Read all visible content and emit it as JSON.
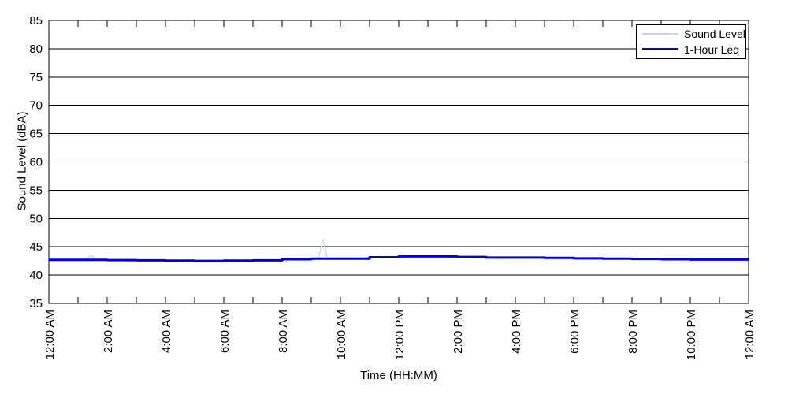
{
  "axes": {
    "x_title": "Time (HH:MM)",
    "y_title": "Sound Level (dBA)"
  },
  "chart_data": {
    "type": "line",
    "title": "",
    "xlabel": "Time (HH:MM)",
    "ylabel": "Sound Level (dBA)",
    "xlim": [
      0,
      24
    ],
    "ylim": [
      35,
      85
    ],
    "x_unit": "hours after 12:00 AM",
    "y_ticks": [
      35,
      40,
      45,
      50,
      55,
      60,
      65,
      70,
      75,
      80,
      85
    ],
    "x_tick_labels": [
      "12:00 AM",
      "2:00 AM",
      "4:00 AM",
      "6:00 AM",
      "8:00 AM",
      "10:00 AM",
      "12:00 PM",
      "2:00 PM",
      "4:00 PM",
      "6:00 PM",
      "8:00 PM",
      "10:00 PM",
      "12:00 AM"
    ],
    "x_tick_hours": [
      0,
      2,
      4,
      6,
      8,
      10,
      12,
      14,
      16,
      18,
      20,
      22,
      24
    ],
    "x_minor_tick_every_hours": 1,
    "grid": "horizontal black gridlines every 5 dBA, no vertical gridlines",
    "legend_position": "top-right inside plot",
    "series": [
      {
        "name": "Sound Level",
        "style": "line",
        "color": "#c5d5f0",
        "stroke_width": 1.2,
        "points": [
          [
            0,
            42.7
          ],
          [
            0.25,
            42.7
          ],
          [
            0.5,
            42.65
          ],
          [
            0.75,
            42.7
          ],
          [
            1,
            42.7
          ],
          [
            1.25,
            42.65
          ],
          [
            1.45,
            43.5
          ],
          [
            1.6,
            42.7
          ],
          [
            1.75,
            42.65
          ],
          [
            2,
            42.6
          ],
          [
            2.25,
            42.65
          ],
          [
            2.5,
            42.6
          ],
          [
            2.75,
            42.6
          ],
          [
            3,
            42.6
          ],
          [
            3.25,
            42.55
          ],
          [
            3.5,
            42.6
          ],
          [
            3.75,
            42.55
          ],
          [
            4,
            42.5
          ],
          [
            4.25,
            42.5
          ],
          [
            4.5,
            42.4
          ],
          [
            4.75,
            42.45
          ],
          [
            5,
            42.5
          ],
          [
            5.25,
            42.45
          ],
          [
            5.5,
            42.35
          ],
          [
            5.75,
            42.4
          ],
          [
            6,
            42.45
          ],
          [
            6.25,
            42.4
          ],
          [
            6.5,
            42.35
          ],
          [
            6.75,
            42.45
          ],
          [
            7,
            42.5
          ],
          [
            7.25,
            42.55
          ],
          [
            7.5,
            42.6
          ],
          [
            7.75,
            42.65
          ],
          [
            8,
            42.7
          ],
          [
            8.25,
            42.75
          ],
          [
            8.5,
            42.7
          ],
          [
            8.75,
            42.8
          ],
          [
            9,
            42.85
          ],
          [
            9.25,
            43
          ],
          [
            9.4,
            46.4
          ],
          [
            9.55,
            42.9
          ],
          [
            9.75,
            42.9
          ],
          [
            10,
            42.9
          ],
          [
            10.25,
            42.85
          ],
          [
            10.5,
            42.9
          ],
          [
            10.75,
            43
          ],
          [
            11,
            43.15
          ],
          [
            11.25,
            43.2
          ],
          [
            11.5,
            43.2
          ],
          [
            11.75,
            43.25
          ],
          [
            12,
            43.3
          ],
          [
            12.25,
            43.35
          ],
          [
            12.5,
            43.3
          ],
          [
            12.75,
            43.3
          ],
          [
            13,
            43.3
          ],
          [
            13.25,
            43.25
          ],
          [
            13.5,
            43.2
          ],
          [
            13.75,
            43.2
          ],
          [
            14,
            43.2
          ],
          [
            14.25,
            43.1
          ],
          [
            14.5,
            43.05
          ],
          [
            14.75,
            43.1
          ],
          [
            15,
            43.1
          ],
          [
            15.25,
            43
          ],
          [
            15.5,
            42.95
          ],
          [
            15.75,
            43
          ],
          [
            16,
            43.1
          ],
          [
            16.25,
            43.05
          ],
          [
            16.5,
            43
          ],
          [
            16.75,
            43.05
          ],
          [
            17,
            43.05
          ],
          [
            17.25,
            43
          ],
          [
            17.5,
            42.95
          ],
          [
            17.75,
            42.95
          ],
          [
            18,
            42.95
          ],
          [
            18.25,
            42.9
          ],
          [
            18.5,
            42.85
          ],
          [
            18.75,
            42.9
          ],
          [
            19,
            42.9
          ],
          [
            19.25,
            42.85
          ],
          [
            19.5,
            42.8
          ],
          [
            19.75,
            42.85
          ],
          [
            20,
            42.85
          ],
          [
            20.25,
            42.8
          ],
          [
            20.5,
            42.8
          ],
          [
            20.75,
            42.75
          ],
          [
            21,
            42.8
          ],
          [
            21.25,
            42.75
          ],
          [
            21.5,
            42.7
          ],
          [
            21.75,
            42.75
          ],
          [
            22,
            42.75
          ],
          [
            22.25,
            42.7
          ],
          [
            22.5,
            42.75
          ],
          [
            22.75,
            42.7
          ],
          [
            23,
            42.75
          ],
          [
            23.25,
            42.7
          ],
          [
            23.5,
            42.75
          ],
          [
            23.75,
            42.7
          ],
          [
            24,
            42.75
          ]
        ]
      },
      {
        "name": "1-Hour Leq",
        "style": "step",
        "color": "#0000e0",
        "stroke_width": 3,
        "points": [
          [
            0,
            42.7
          ],
          [
            1,
            42.7
          ],
          [
            2,
            42.65
          ],
          [
            3,
            42.6
          ],
          [
            4,
            42.55
          ],
          [
            5,
            42.5
          ],
          [
            6,
            42.55
          ],
          [
            7,
            42.6
          ],
          [
            8,
            42.8
          ],
          [
            9,
            42.9
          ],
          [
            10,
            42.9
          ],
          [
            11,
            43.15
          ],
          [
            12,
            43.3
          ],
          [
            13,
            43.3
          ],
          [
            14,
            43.2
          ],
          [
            15,
            43.1
          ],
          [
            16,
            43.1
          ],
          [
            17,
            43.05
          ],
          [
            18,
            42.95
          ],
          [
            19,
            42.9
          ],
          [
            20,
            42.85
          ],
          [
            21,
            42.8
          ],
          [
            22,
            42.75
          ],
          [
            23,
            42.75
          ],
          [
            24,
            42.75
          ]
        ]
      }
    ]
  }
}
